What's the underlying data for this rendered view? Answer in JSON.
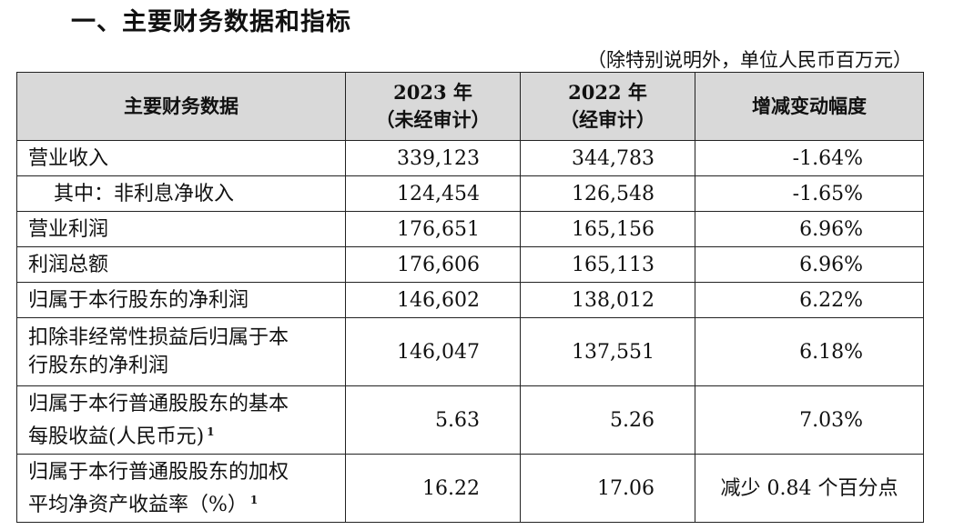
{
  "section_title": "一、主要财务数据和指标",
  "unit_note": "（除特别说明外，单位人民币百万元）",
  "table": {
    "headers": {
      "col1": "主要财务数据",
      "col2_line1": "2023 年",
      "col2_line2": "（未经审计）",
      "col3_line1": "2022 年",
      "col3_line2": "（经审计）",
      "col4": "增减变动幅度"
    },
    "rows": [
      {
        "label": "营业收入",
        "v2023": "339,123",
        "v2022": "344,783",
        "change": "-1.64%"
      },
      {
        "label": "其中：非利息净收入",
        "v2023": "124,454",
        "v2022": "126,548",
        "change": "-1.65%"
      },
      {
        "label": "营业利润",
        "v2023": "176,651",
        "v2022": "165,156",
        "change": "6.96%"
      },
      {
        "label": "利润总额",
        "v2023": "176,606",
        "v2022": "165,113",
        "change": "6.96%"
      },
      {
        "label": "归属于本行股东的净利润",
        "v2023": "146,602",
        "v2022": "138,012",
        "change": "6.22%"
      },
      {
        "label_line1": "扣除非经常性损益后归属于本",
        "label_line2": "行股东的净利润",
        "v2023": "146,047",
        "v2022": "137,551",
        "change": "6.18%"
      },
      {
        "label_line1": "归属于本行普通股股东的基本",
        "label_line2": "每股收益(人民币元)",
        "footnote": "1",
        "v2023": "5.63",
        "v2022": "5.26",
        "change": "7.03%"
      },
      {
        "label_line1": "归属于本行普通股股东的加权",
        "label_line2": "平均净资产收益率（%）",
        "footnote": "1",
        "v2023": "16.22",
        "v2022": "17.06",
        "change": "减少 0.84 个百分点"
      }
    ]
  }
}
